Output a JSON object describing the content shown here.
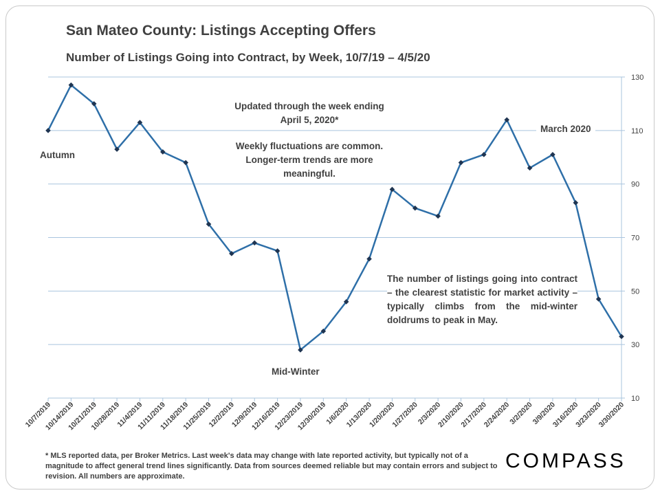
{
  "title": "San Mateo County: Listings Accepting Offers",
  "subtitle": "Number of Listings Going into Contract, by Week, 10/7/19 – 4/5/20",
  "annotations": {
    "updated": "Updated through the week ending April 5, 2020*",
    "fluctuations": "Weekly fluctuations are common. Longer-term trends are more meaningful.",
    "march": "March 2020",
    "autumn": "Autumn",
    "midwinter": "Mid-Winter",
    "trend": "The number of listings going into contract – the clearest statistic for market activity – typically climbs from the mid-winter doldrums to peak in May."
  },
  "footnote": "* MLS reported data, per Broker Metrics. Last week's data may change with late reported activity, but typically not of a magnitude to affect general trend lines significantly. Data from sources deemed reliable but may contain errors and subject to revision. All numbers are approximate.",
  "logo": "COMPASS",
  "colors": {
    "line": "#2e6fa8",
    "marker": "#1f3552",
    "grid": "#a9c4de",
    "text": "#404040"
  },
  "chart_data": {
    "type": "line",
    "title": "San Mateo County: Listings Accepting Offers",
    "subtitle": "Number of Listings Going into Contract, by Week, 10/7/19 – 4/5/20",
    "xlabel": "",
    "ylabel": "",
    "ylim": [
      10,
      130
    ],
    "yticks": [
      10,
      30,
      50,
      70,
      90,
      110,
      130
    ],
    "y_axis_side": "right",
    "grid": "horizontal",
    "categories": [
      "10/7/2019",
      "10/14/2019",
      "10/21/2019",
      "10/28/2019",
      "11/4/2019",
      "11/11/2019",
      "11/18/2019",
      "11/25/2019",
      "12/2/2019",
      "12/9/2019",
      "12/16/2019",
      "12/23/2019",
      "12/30/2019",
      "1/6/2020",
      "1/13/2020",
      "1/20/2020",
      "1/27/2020",
      "2/3/2020",
      "2/10/2020",
      "2/17/2020",
      "2/24/2020",
      "3/2/2020",
      "3/9/2020",
      "3/16/2020",
      "3/23/2020",
      "3/30/2020"
    ],
    "values": [
      110,
      127,
      120,
      103,
      113,
      102,
      98,
      75,
      64,
      68,
      65,
      28,
      35,
      46,
      62,
      88,
      81,
      78,
      98,
      101,
      114,
      96,
      101,
      83,
      47,
      33
    ]
  }
}
